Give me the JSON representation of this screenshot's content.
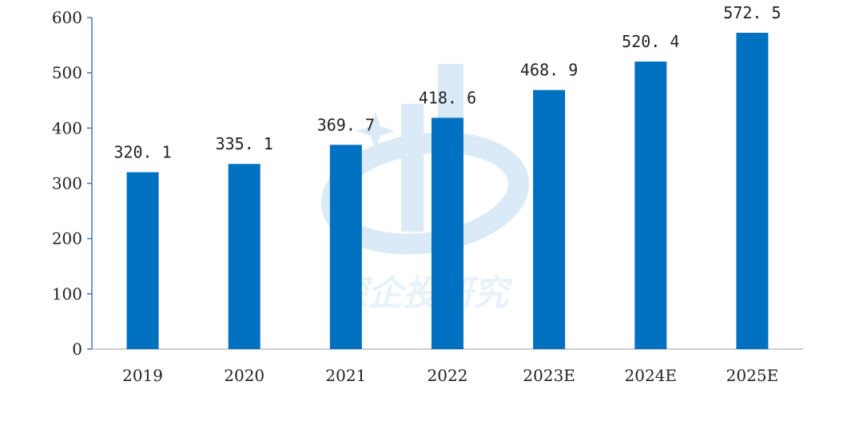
{
  "chart_data": {
    "type": "bar",
    "categories": [
      "2019",
      "2020",
      "2021",
      "2022",
      "2023E",
      "2024E",
      "2025E"
    ],
    "values": [
      320.1,
      335.1,
      369.7,
      418.6,
      468.9,
      520.4,
      572.5
    ],
    "value_labels": [
      "320. 1",
      "335. 1",
      "369. 7",
      "418. 6",
      "468. 9",
      "520. 4",
      "572. 5"
    ],
    "yticks": [
      "0",
      "100",
      "200",
      "300",
      "400",
      "500",
      "600"
    ],
    "ylim": [
      0,
      600
    ],
    "title": "",
    "xlabel": "",
    "ylabel": "",
    "grid": false,
    "bar_color": "#0070C0",
    "axis_color": "#4472C4"
  },
  "watermark": {
    "text": "深企投研究",
    "color": "#d6e8f5"
  }
}
